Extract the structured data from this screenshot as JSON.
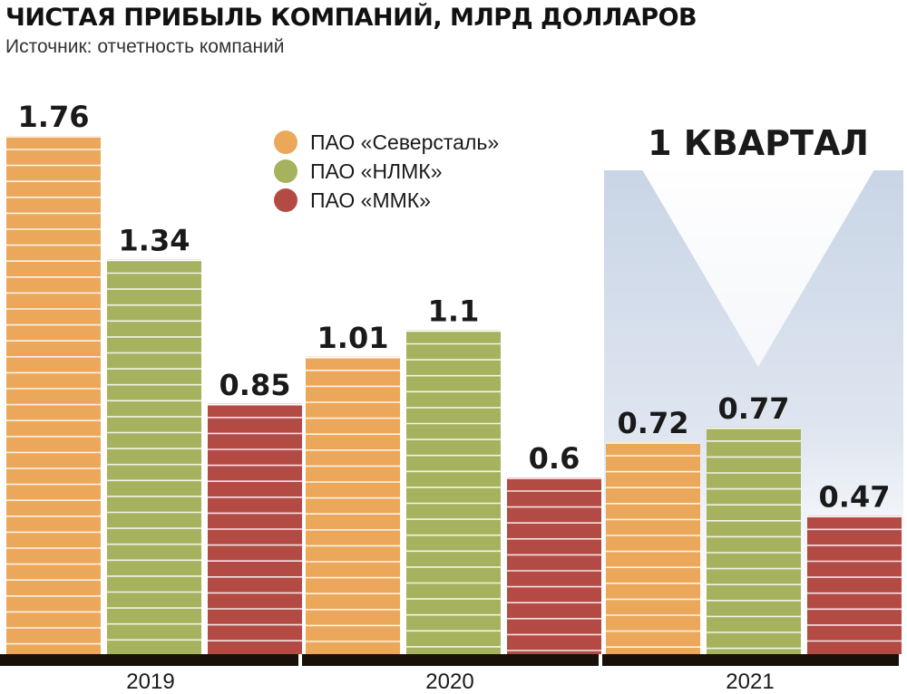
{
  "chart_data": {
    "type": "bar",
    "title": "ЧИСТАЯ ПРИБЫЛЬ КОМПАНИЙ, МЛРД ДОЛЛАРОВ",
    "subtitle": "Источник: отчетность компаний",
    "categories": [
      "2019",
      "2020",
      "2021"
    ],
    "series": [
      {
        "name": "ПАО «Северсталь»",
        "color": "#EBA85B",
        "values": [
          1.76,
          1.01,
          0.72
        ]
      },
      {
        "name": "ПАО «НЛМК»",
        "color": "#A6B25D",
        "values": [
          1.34,
          1.1,
          0.77
        ]
      },
      {
        "name": "ПАО «ММК»",
        "color": "#B34B44",
        "values": [
          0.85,
          0.6,
          0.47
        ]
      }
    ],
    "value_labels": [
      [
        "1.76",
        "1.01",
        "0.72"
      ],
      [
        "1.34",
        "1.1",
        "0.77"
      ],
      [
        "0.85",
        "0.6",
        "0.47"
      ]
    ],
    "highlight": {
      "category": "2021",
      "label": "1 КВАРТАЛ"
    },
    "ylim": [
      0,
      1.8
    ],
    "xlabel": "",
    "ylabel": "",
    "grid": false,
    "legend_position": "top-center",
    "axis_color": "#1a1008"
  }
}
